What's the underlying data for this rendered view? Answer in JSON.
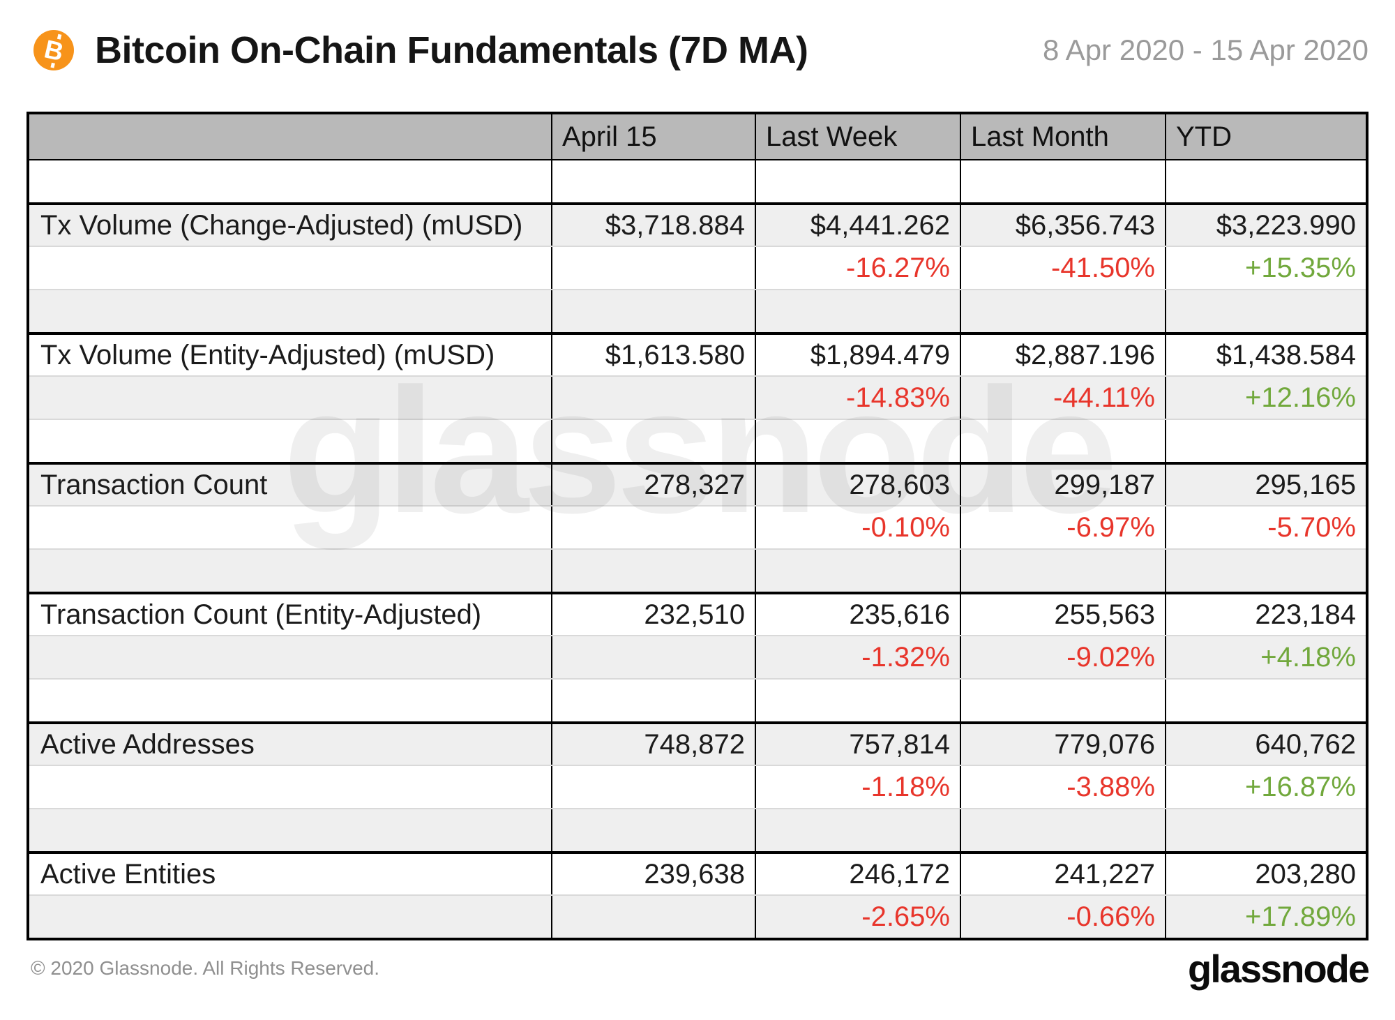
{
  "header": {
    "title": "Bitcoin On-Chain Fundamentals (7D MA)",
    "date_range": "8 Apr 2020 - 15 Apr 2020",
    "icon": "bitcoin-icon",
    "icon_glyph": "B"
  },
  "chart_data": {
    "type": "table",
    "title": "Bitcoin On-Chain Fundamentals (7D MA)",
    "columns": [
      "",
      "April 15",
      "Last Week",
      "Last Month",
      "YTD"
    ],
    "metrics": [
      {
        "label": "Tx Volume (Change-Adjusted) (mUSD)",
        "values": [
          "$3,718.884",
          "$4,441.262",
          "$6,356.743",
          "$3,223.990"
        ],
        "changes": [
          "-16.27%",
          "-41.50%",
          "+15.35%"
        ]
      },
      {
        "label": "Tx Volume (Entity-Adjusted) (mUSD)",
        "values": [
          "$1,613.580",
          "$1,894.479",
          "$2,887.196",
          "$1,438.584"
        ],
        "changes": [
          "-14.83%",
          "-44.11%",
          "+12.16%"
        ]
      },
      {
        "label": "Transaction Count",
        "values": [
          "278,327",
          "278,603",
          "299,187",
          "295,165"
        ],
        "changes": [
          "-0.10%",
          "-6.97%",
          "-5.70%"
        ]
      },
      {
        "label": "Transaction Count (Entity-Adjusted)",
        "values": [
          "232,510",
          "235,616",
          "255,563",
          "223,184"
        ],
        "changes": [
          "-1.32%",
          "-9.02%",
          "+4.18%"
        ]
      },
      {
        "label": "Active Addresses",
        "values": [
          "748,872",
          "757,814",
          "779,076",
          "640,762"
        ],
        "changes": [
          "-1.18%",
          "-3.88%",
          "+16.87%"
        ]
      },
      {
        "label": "Active Entities",
        "values": [
          "239,638",
          "246,172",
          "241,227",
          "203,280"
        ],
        "changes": [
          "-2.65%",
          "-0.66%",
          "+17.89%"
        ]
      }
    ]
  },
  "watermark": "glassnode",
  "footer": {
    "copyright": "© 2020 Glassnode. All Rights Reserved.",
    "brand": "glassnode"
  },
  "colors": {
    "accent_orange": "#f7931a",
    "negative": "#e8352b",
    "positive": "#71a83c",
    "header_bg": "#b9b9b9",
    "row_shade": "#efefef"
  }
}
